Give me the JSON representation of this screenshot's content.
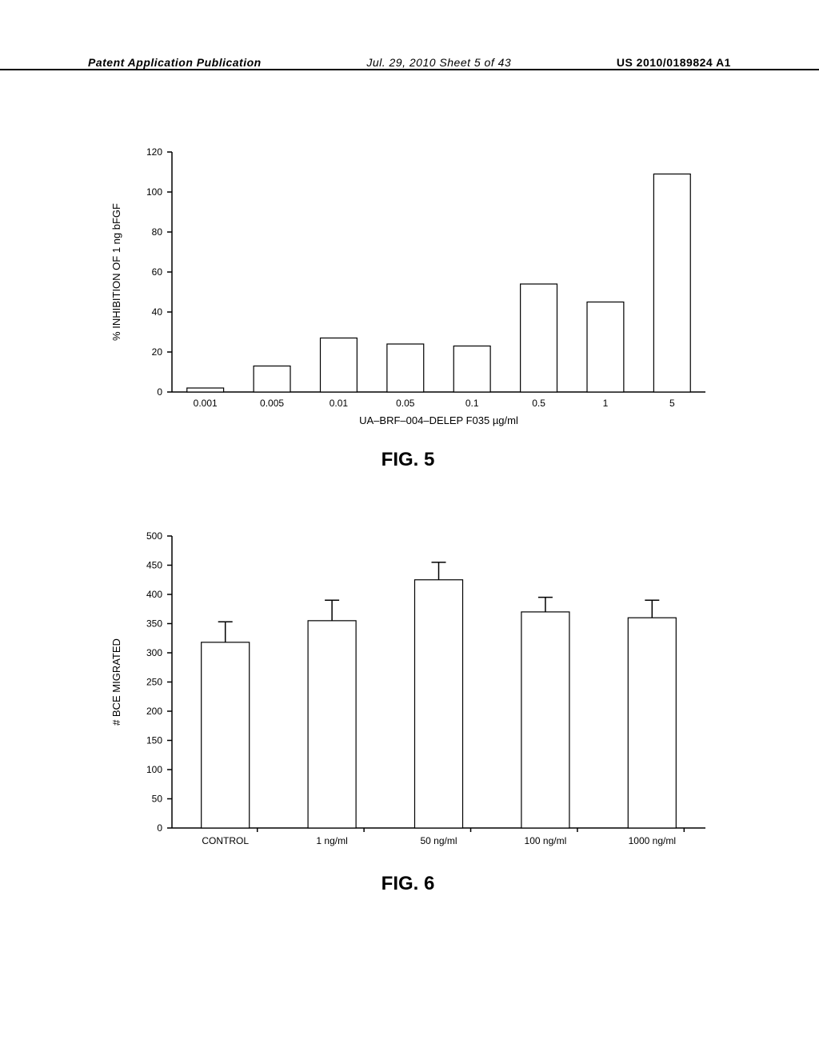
{
  "header": {
    "left": "Patent Application Publication",
    "center": "Jul. 29, 2010  Sheet 5 of 43",
    "right": "US 2010/0189824 A1"
  },
  "chart5": {
    "type": "bar",
    "title": "FIG. 5",
    "ylabel": "% INHIBITION OF 1 ng bFGF",
    "xlabel": "UA–BRF–004–DELEP    F035 µg/ml",
    "ylim": [
      0,
      120
    ],
    "ytick_step": 20,
    "categories": [
      "0.001",
      "0.005",
      "0.01",
      "0.05",
      "0.1",
      "0.5",
      "1",
      "5"
    ],
    "values": [
      2,
      13,
      27,
      24,
      23,
      54,
      45,
      109
    ],
    "bar_fill": "#ffffff",
    "bar_stroke": "#000000",
    "bar_width": 0.55,
    "background_color": "#ffffff",
    "label_fontsize": 12,
    "title_fontsize": 24,
    "axis_color": "#000000"
  },
  "chart6": {
    "type": "bar",
    "title": "FIG. 6",
    "ylabel": "# BCE MIGRATED",
    "ylim": [
      0,
      500
    ],
    "ytick_step": 50,
    "categories": [
      "CONTROL",
      "1 ng/ml",
      "50 ng/ml",
      "100 ng/ml",
      "1000 ng/ml"
    ],
    "values": [
      318,
      355,
      425,
      370,
      360
    ],
    "errors": [
      35,
      35,
      30,
      25,
      30
    ],
    "bar_fill": "#ffffff",
    "bar_stroke": "#000000",
    "bar_width": 0.45,
    "background_color": "#ffffff",
    "label_fontsize": 12,
    "title_fontsize": 24,
    "axis_color": "#000000"
  }
}
